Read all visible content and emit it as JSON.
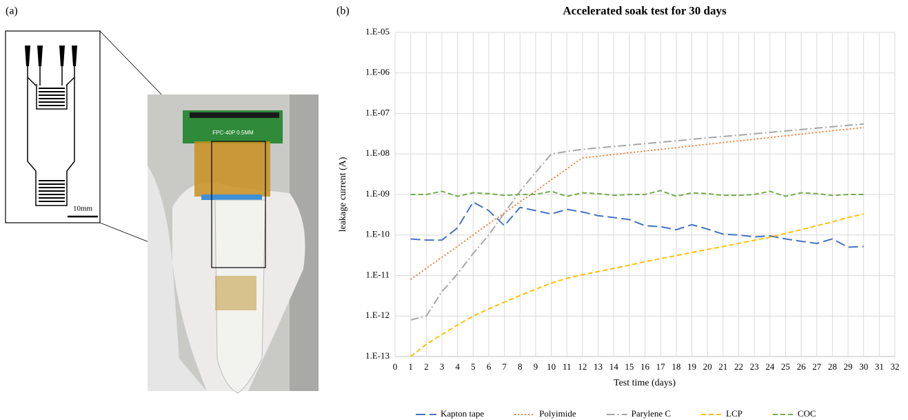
{
  "panel_labels": {
    "a": "(a)",
    "b": "(b)"
  },
  "panel_a": {
    "scale_bar": "10mm",
    "connector_label": "FPC-40P 0.5MM"
  },
  "chart_data": {
    "type": "line",
    "title": "Accelerated soak test for 30 days",
    "x_label": "Test time (days)",
    "y_label": "leakage current (A)",
    "yscale": "log",
    "grid": true,
    "legend": "bottom",
    "xlim": [
      0,
      32
    ],
    "xticks": [
      0,
      1,
      2,
      3,
      4,
      5,
      6,
      7,
      8,
      9,
      10,
      11,
      12,
      13,
      14,
      15,
      16,
      17,
      18,
      19,
      20,
      21,
      22,
      23,
      24,
      25,
      26,
      27,
      28,
      29,
      30,
      31,
      32
    ],
    "ylim": [
      1e-13,
      1e-05
    ],
    "yticks": [
      {
        "value": 1e-13,
        "label": "1.E-13"
      },
      {
        "value": 1e-12,
        "label": "1.E-12"
      },
      {
        "value": 1e-11,
        "label": "1.E-11"
      },
      {
        "value": 1e-10,
        "label": "1.E-10"
      },
      {
        "value": 1e-09,
        "label": "1.E-09"
      },
      {
        "value": 1e-08,
        "label": "1.E-08"
      },
      {
        "value": 1e-07,
        "label": "1.E-07"
      },
      {
        "value": 1e-06,
        "label": "1.E-06"
      },
      {
        "value": 1e-05,
        "label": "1.E-05"
      }
    ],
    "x": [
      1,
      2,
      3,
      4,
      5,
      6,
      7,
      8,
      9,
      10,
      11,
      12,
      13,
      14,
      15,
      16,
      17,
      18,
      19,
      20,
      21,
      22,
      23,
      24,
      25,
      26,
      27,
      28,
      29,
      30
    ],
    "series": [
      {
        "name": "Kapton tape",
        "color": "#4472c4",
        "dash": "long-dash",
        "values": [
          8e-11,
          7.5e-11,
          7.5e-11,
          1.5e-10,
          6.5e-10,
          4e-10,
          1.7e-10,
          4.8e-10,
          4e-10,
          3.3e-10,
          4.3e-10,
          3.7e-10,
          3e-10,
          2.7e-10,
          2.4e-10,
          1.7e-10,
          1.6e-10,
          1.35e-10,
          1.8e-10,
          1.4e-10,
          1.05e-10,
          1e-10,
          9e-11,
          9.5e-11,
          8e-11,
          7e-11,
          6.2e-11,
          8e-11,
          5e-11,
          5.2e-11
        ]
      },
      {
        "name": "Polyimide",
        "color": "#ed7d31",
        "dash": "dot",
        "values": [
          8e-12,
          1.5e-11,
          2.8e-11,
          5.3e-11,
          1e-10,
          1.9e-10,
          3.5e-10,
          6.6e-10,
          1.2e-09,
          2.3e-09,
          4.3e-09,
          8e-09,
          8.8e-09,
          9.7e-09,
          1.07e-08,
          1.18e-08,
          1.3e-08,
          1.43e-08,
          1.58e-08,
          1.74e-08,
          1.91e-08,
          2.1e-08,
          2.3e-08,
          2.55e-08,
          2.8e-08,
          3.1e-08,
          3.4e-08,
          3.75e-08,
          4.1e-08,
          4.5e-08
        ]
      },
      {
        "name": "Parylene C",
        "color": "#a5a5a5",
        "dash": "dash-dot",
        "values": [
          8e-13,
          1e-12,
          4e-12,
          1.1e-11,
          3.5e-11,
          1e-10,
          3.5e-10,
          1.2e-09,
          3.5e-09,
          1e-08,
          1.15e-08,
          1.3e-08,
          1.41e-08,
          1.53e-08,
          1.66e-08,
          1.8e-08,
          1.95e-08,
          2.1e-08,
          2.3e-08,
          2.5e-08,
          2.7e-08,
          2.9e-08,
          3.15e-08,
          3.4e-08,
          3.7e-08,
          4e-08,
          4.35e-08,
          4.7e-08,
          5.1e-08,
          5.5e-08
        ]
      },
      {
        "name": "LCP",
        "color": "#ffc000",
        "dash": "dash",
        "values": [
          1e-13,
          2e-13,
          3.5e-13,
          6e-13,
          1e-12,
          1.5e-12,
          2.2e-12,
          3.2e-12,
          4.6e-12,
          6.5e-12,
          8.5e-12,
          1.05e-11,
          1.25e-11,
          1.5e-11,
          1.8e-11,
          2.2e-11,
          2.6e-11,
          3.1e-11,
          3.7e-11,
          4.4e-11,
          5.2e-11,
          6.2e-11,
          7.4e-11,
          8.8e-11,
          1.1e-10,
          1.35e-10,
          1.7e-10,
          2.1e-10,
          2.7e-10,
          3.3e-10
        ]
      },
      {
        "name": "COC",
        "color": "#70ad47",
        "dash": "dash",
        "values": [
          1e-09,
          1e-09,
          1.2e-09,
          9e-10,
          1.1e-09,
          1.05e-09,
          9.5e-10,
          1e-09,
          1e-09,
          1.2e-09,
          9e-10,
          1.1e-09,
          1.05e-09,
          9.5e-10,
          1e-09,
          1e-09,
          1.25e-09,
          9e-10,
          1.1e-09,
          1.05e-09,
          9.5e-10,
          9.5e-10,
          1e-09,
          1.2e-09,
          9e-10,
          1.1e-09,
          1.05e-09,
          9.5e-10,
          1e-09,
          1e-09
        ]
      }
    ]
  }
}
